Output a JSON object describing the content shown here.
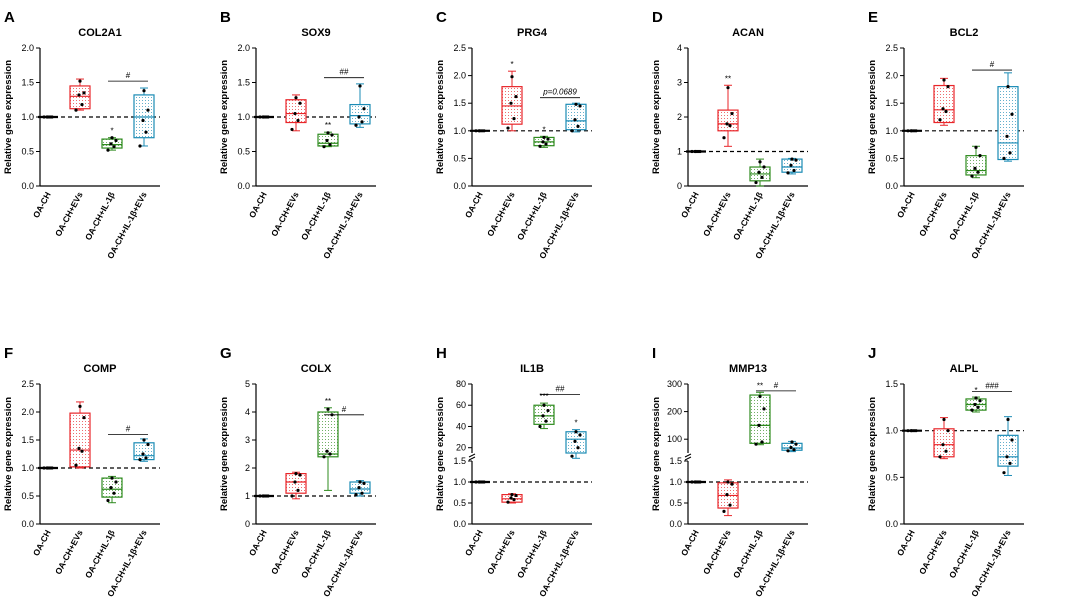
{
  "figure": {
    "categories": [
      "OA-CH",
      "OA-CH+EVs",
      "OA-CH+IL-1β",
      "OA-CH+IL-1β+EVs"
    ],
    "group_colors": [
      "#000000",
      "#e8262a",
      "#2e8b1e",
      "#1a8bb5"
    ],
    "reference_value": 1.0
  },
  "chart_data": [
    {
      "id": "A",
      "type": "box",
      "title": "COL2A1",
      "ylabel": "Relative gene expression",
      "ylim": [
        0,
        2.0
      ],
      "yticks": [
        "0.0",
        "0.5",
        "1.0",
        "1.5",
        "2.0"
      ],
      "ytick_values": [
        0,
        0.5,
        1.0,
        1.5,
        2.0
      ],
      "series": [
        {
          "name": "OA-CH",
          "min": 1.0,
          "q1": 1.0,
          "median": 1.0,
          "q3": 1.0,
          "max": 1.0,
          "points": [
            1.0,
            1.0,
            1.0,
            1.0,
            1.0
          ],
          "sig": ""
        },
        {
          "name": "OA-CH+EVs",
          "min": 1.1,
          "q1": 1.12,
          "median": 1.3,
          "q3": 1.45,
          "max": 1.55,
          "points": [
            1.1,
            1.18,
            1.32,
            1.35,
            1.52
          ],
          "sig": ""
        },
        {
          "name": "OA-CH+IL-1β",
          "min": 0.52,
          "q1": 0.55,
          "median": 0.6,
          "q3": 0.68,
          "max": 0.7,
          "points": [
            0.52,
            0.57,
            0.61,
            0.66,
            0.7
          ],
          "sig": "*"
        },
        {
          "name": "OA-CH+IL-1β+EVs",
          "min": 0.58,
          "q1": 0.7,
          "median": 1.0,
          "q3": 1.32,
          "max": 1.42,
          "points": [
            0.58,
            0.78,
            0.95,
            1.1,
            1.38
          ],
          "sig": ""
        }
      ],
      "brackets": [
        {
          "from": 2,
          "to": 3,
          "value": 1.52,
          "label": "#"
        }
      ]
    },
    {
      "id": "B",
      "type": "box",
      "title": "SOX9",
      "ylabel": "Relative gene expression",
      "ylim": [
        0,
        2.0
      ],
      "yticks": [
        "0.0",
        "0.5",
        "1.0",
        "1.5",
        "2.0"
      ],
      "ytick_values": [
        0,
        0.5,
        1.0,
        1.5,
        2.0
      ],
      "series": [
        {
          "name": "OA-CH",
          "min": 1.0,
          "q1": 1.0,
          "median": 1.0,
          "q3": 1.0,
          "max": 1.0,
          "points": [
            1.0,
            1.0,
            1.0,
            1.0,
            1.0
          ],
          "sig": ""
        },
        {
          "name": "OA-CH+EVs",
          "min": 0.8,
          "q1": 0.92,
          "median": 1.05,
          "q3": 1.25,
          "max": 1.32,
          "points": [
            0.82,
            0.95,
            1.05,
            1.2,
            1.28
          ],
          "sig": ""
        },
        {
          "name": "OA-CH+IL-1β",
          "min": 0.57,
          "q1": 0.58,
          "median": 0.62,
          "q3": 0.75,
          "max": 0.78,
          "points": [
            0.57,
            0.6,
            0.66,
            0.74,
            0.77
          ],
          "sig": "**"
        },
        {
          "name": "OA-CH+IL-1β+EVs",
          "min": 0.85,
          "q1": 0.9,
          "median": 1.02,
          "q3": 1.18,
          "max": 1.48,
          "points": [
            0.88,
            0.93,
            1.0,
            1.12,
            1.45
          ],
          "sig": ""
        }
      ],
      "brackets": [
        {
          "from": 2,
          "to": 3,
          "value": 1.57,
          "label": "##"
        }
      ]
    },
    {
      "id": "C",
      "type": "box",
      "title": "PRG4",
      "ylabel": "Relative gene expression",
      "ylim": [
        0,
        2.5
      ],
      "yticks": [
        "0.0",
        "0.5",
        "1.0",
        "1.5",
        "2.0",
        "2.5"
      ],
      "ytick_values": [
        0,
        0.5,
        1.0,
        1.5,
        2.0,
        2.5
      ],
      "series": [
        {
          "name": "OA-CH",
          "min": 1.0,
          "q1": 1.0,
          "median": 1.0,
          "q3": 1.0,
          "max": 1.0,
          "points": [
            1.0,
            1.0,
            1.0,
            1.0,
            1.0
          ],
          "sig": ""
        },
        {
          "name": "OA-CH+EVs",
          "min": 1.0,
          "q1": 1.12,
          "median": 1.45,
          "q3": 1.8,
          "max": 2.08,
          "points": [
            1.05,
            1.22,
            1.5,
            1.62,
            1.98
          ],
          "sig": "*"
        },
        {
          "name": "OA-CH+IL-1β",
          "min": 0.7,
          "q1": 0.73,
          "median": 0.8,
          "q3": 0.88,
          "max": 0.9,
          "points": [
            0.72,
            0.76,
            0.8,
            0.85,
            0.88
          ],
          "sig": "*"
        },
        {
          "name": "OA-CH+IL-1β+EVs",
          "min": 0.98,
          "q1": 1.02,
          "median": 1.18,
          "q3": 1.48,
          "max": 1.5,
          "points": [
            1.0,
            1.08,
            1.2,
            1.45,
            1.48
          ],
          "sig": ""
        }
      ],
      "brackets": [
        {
          "from": 2,
          "to": 3,
          "value": 1.6,
          "label": "p=0.0689"
        }
      ]
    },
    {
      "id": "D",
      "type": "box",
      "title": "ACAN",
      "ylabel": "Relative gene expression",
      "ylim": [
        0,
        4
      ],
      "yticks": [
        "0",
        "1",
        "2",
        "3",
        "4"
      ],
      "ytick_values": [
        0,
        1,
        2,
        3,
        4
      ],
      "series": [
        {
          "name": "OA-CH",
          "min": 1.0,
          "q1": 1.0,
          "median": 1.0,
          "q3": 1.0,
          "max": 1.0,
          "points": [
            1.0,
            1.0,
            1.0,
            1.0,
            1.0
          ],
          "sig": ""
        },
        {
          "name": "OA-CH+EVs",
          "min": 1.15,
          "q1": 1.6,
          "median": 1.8,
          "q3": 2.2,
          "max": 2.92,
          "points": [
            1.4,
            1.75,
            1.8,
            2.1,
            2.85
          ],
          "sig": "**"
        },
        {
          "name": "OA-CH+IL-1β",
          "min": 0.0,
          "q1": 0.15,
          "median": 0.35,
          "q3": 0.55,
          "max": 0.78,
          "points": [
            0.1,
            0.25,
            0.4,
            0.55,
            0.7
          ],
          "sig": ""
        },
        {
          "name": "OA-CH+IL-1β+EVs",
          "min": 0.35,
          "q1": 0.4,
          "median": 0.55,
          "q3": 0.78,
          "max": 0.8,
          "points": [
            0.38,
            0.45,
            0.6,
            0.75,
            0.78
          ],
          "sig": ""
        }
      ],
      "brackets": []
    },
    {
      "id": "E",
      "type": "box",
      "title": "BCL2",
      "ylabel": "Relative gene expression",
      "ylim": [
        0,
        2.5
      ],
      "yticks": [
        "0.0",
        "0.5",
        "1.0",
        "1.5",
        "2.0",
        "2.5"
      ],
      "ytick_values": [
        0,
        0.5,
        1.0,
        1.5,
        2.0,
        2.5
      ],
      "series": [
        {
          "name": "OA-CH",
          "min": 1.0,
          "q1": 1.0,
          "median": 1.0,
          "q3": 1.0,
          "max": 1.0,
          "points": [
            1.0,
            1.0,
            1.0,
            1.0,
            1.0
          ],
          "sig": ""
        },
        {
          "name": "OA-CH+EVs",
          "min": 1.1,
          "q1": 1.15,
          "median": 1.38,
          "q3": 1.82,
          "max": 1.95,
          "points": [
            1.2,
            1.35,
            1.4,
            1.8,
            1.92
          ],
          "sig": ""
        },
        {
          "name": "OA-CH+IL-1β",
          "min": 0.15,
          "q1": 0.2,
          "median": 0.28,
          "q3": 0.55,
          "max": 0.72,
          "points": [
            0.18,
            0.25,
            0.32,
            0.55,
            0.7
          ],
          "sig": ""
        },
        {
          "name": "OA-CH+IL-1β+EVs",
          "min": 0.45,
          "q1": 0.48,
          "median": 0.78,
          "q3": 1.8,
          "max": 2.05,
          "points": [
            0.5,
            0.6,
            0.9,
            1.3,
            1.8
          ],
          "sig": ""
        }
      ],
      "brackets": [
        {
          "from": 2,
          "to": 3,
          "value": 2.1,
          "label": "#"
        }
      ]
    },
    {
      "id": "F",
      "type": "box",
      "title": "COMP",
      "ylabel": "Relative gene expression",
      "ylim": [
        0,
        2.5
      ],
      "yticks": [
        "0.0",
        "0.5",
        "1.0",
        "1.5",
        "2.0",
        "2.5"
      ],
      "ytick_values": [
        0,
        0.5,
        1.0,
        1.5,
        2.0,
        2.5
      ],
      "series": [
        {
          "name": "OA-CH",
          "min": 1.0,
          "q1": 1.0,
          "median": 1.0,
          "q3": 1.0,
          "max": 1.0,
          "points": [
            1.0,
            1.0,
            1.0,
            1.0,
            1.0
          ],
          "sig": ""
        },
        {
          "name": "OA-CH+EVs",
          "min": 1.0,
          "q1": 1.02,
          "median": 1.32,
          "q3": 1.98,
          "max": 2.18,
          "points": [
            1.05,
            1.3,
            1.35,
            1.9,
            2.1
          ],
          "sig": ""
        },
        {
          "name": "OA-CH+IL-1β",
          "min": 0.38,
          "q1": 0.48,
          "median": 0.62,
          "q3": 0.82,
          "max": 0.85,
          "points": [
            0.42,
            0.55,
            0.65,
            0.75,
            0.82
          ],
          "sig": ""
        },
        {
          "name": "OA-CH+IL-1β+EVs",
          "min": 1.12,
          "q1": 1.15,
          "median": 1.22,
          "q3": 1.45,
          "max": 1.52,
          "points": [
            1.15,
            1.18,
            1.25,
            1.42,
            1.5
          ],
          "sig": ""
        }
      ],
      "brackets": [
        {
          "from": 2,
          "to": 3,
          "value": 1.6,
          "label": "#"
        }
      ]
    },
    {
      "id": "G",
      "type": "box",
      "title": "COLX",
      "ylabel": "Relative gene expression",
      "ylim": [
        0,
        5
      ],
      "yticks": [
        "0",
        "1",
        "2",
        "3",
        "4",
        "5"
      ],
      "ytick_values": [
        0,
        1,
        2,
        3,
        4,
        5
      ],
      "series": [
        {
          "name": "OA-CH",
          "min": 1.0,
          "q1": 1.0,
          "median": 1.0,
          "q3": 1.0,
          "max": 1.0,
          "points": [
            1.0,
            1.0,
            1.0,
            1.0,
            1.0
          ],
          "sig": ""
        },
        {
          "name": "OA-CH+EVs",
          "min": 0.9,
          "q1": 1.1,
          "median": 1.5,
          "q3": 1.8,
          "max": 1.85,
          "points": [
            1.0,
            1.2,
            1.5,
            1.75,
            1.8
          ],
          "sig": ""
        },
        {
          "name": "OA-CH+IL-1β",
          "min": 1.2,
          "q1": 2.4,
          "median": 2.5,
          "q3": 4.0,
          "max": 4.15,
          "points": [
            2.4,
            2.5,
            2.6,
            3.9,
            4.1
          ],
          "sig": "**"
        },
        {
          "name": "OA-CH+IL-1β+EVs",
          "min": 1.0,
          "q1": 1.1,
          "median": 1.25,
          "q3": 1.5,
          "max": 1.55,
          "points": [
            1.05,
            1.1,
            1.3,
            1.45,
            1.5
          ],
          "sig": ""
        }
      ],
      "brackets": [
        {
          "from": 2,
          "to": 3,
          "value": 3.9,
          "label": "#"
        }
      ]
    },
    {
      "id": "H",
      "type": "box-broken-axis",
      "title": "IL1B",
      "ylabel": "Relative gene expression",
      "ylim": [
        0,
        80
      ],
      "axis_break": [
        1.5,
        15
      ],
      "yticks": [
        "0.0",
        "0.5",
        "1.0",
        "1.5",
        "20",
        "40",
        "60",
        "80"
      ],
      "ytick_values": [
        0,
        0.5,
        1.0,
        1.5,
        20,
        40,
        60,
        80
      ],
      "series": [
        {
          "name": "OA-CH",
          "min": 1.0,
          "q1": 1.0,
          "median": 1.0,
          "q3": 1.0,
          "max": 1.0,
          "points": [
            1.0,
            1.0,
            1.0,
            1.0,
            1.0
          ],
          "sig": ""
        },
        {
          "name": "OA-CH+EVs",
          "min": 0.5,
          "q1": 0.52,
          "median": 0.6,
          "q3": 0.7,
          "max": 0.72,
          "points": [
            0.52,
            0.58,
            0.62,
            0.68,
            0.7
          ],
          "sig": ""
        },
        {
          "name": "OA-CH+IL-1β",
          "min": 38,
          "q1": 42,
          "median": 50,
          "q3": 60,
          "max": 62,
          "points": [
            40,
            45,
            50,
            55,
            60
          ],
          "sig": "***"
        },
        {
          "name": "OA-CH+IL-1β+EVs",
          "min": 10,
          "q1": 15,
          "median": 28,
          "q3": 35,
          "max": 37,
          "points": [
            12,
            20,
            26,
            32,
            35
          ],
          "sig": "*"
        }
      ],
      "brackets": [
        {
          "from": 2,
          "to": 3,
          "value": 70,
          "label": "##"
        }
      ]
    },
    {
      "id": "I",
      "type": "box-broken-axis",
      "title": "MMP13",
      "ylabel": "Relative gene expression",
      "ylim": [
        0,
        300
      ],
      "axis_break": [
        1.5,
        50
      ],
      "yticks": [
        "0.0",
        "0.5",
        "1.0",
        "1.5",
        "100",
        "200",
        "300"
      ],
      "ytick_values": [
        0,
        0.5,
        1.0,
        1.5,
        100,
        200,
        300
      ],
      "series": [
        {
          "name": "OA-CH",
          "min": 1.0,
          "q1": 1.0,
          "median": 1.0,
          "q3": 1.0,
          "max": 1.0,
          "points": [
            1.0,
            1.0,
            1.0,
            1.0,
            1.0
          ],
          "sig": ""
        },
        {
          "name": "OA-CH+EVs",
          "min": 0.2,
          "q1": 0.38,
          "median": 0.68,
          "q3": 0.98,
          "max": 1.05,
          "points": [
            0.3,
            0.45,
            0.7,
            0.95,
            1.0
          ],
          "sig": ""
        },
        {
          "name": "OA-CH+IL-1β",
          "min": 80,
          "q1": 85,
          "median": 150,
          "q3": 260,
          "max": 270,
          "points": [
            82,
            90,
            150,
            210,
            255
          ],
          "sig": "**"
        },
        {
          "name": "OA-CH+IL-1β+EVs",
          "min": 55,
          "q1": 60,
          "median": 68,
          "q3": 85,
          "max": 92,
          "points": [
            58,
            62,
            70,
            82,
            90
          ],
          "sig": ""
        }
      ],
      "brackets": [
        {
          "from": 2,
          "to": 3,
          "value": 275,
          "label": "#"
        }
      ]
    },
    {
      "id": "J",
      "type": "box",
      "title": "ALPL",
      "ylabel": "Relative gene expression",
      "ylim": [
        0,
        1.5
      ],
      "yticks": [
        "0.0",
        "0.5",
        "1.0",
        "1.5"
      ],
      "ytick_values": [
        0,
        0.5,
        1.0,
        1.5
      ],
      "series": [
        {
          "name": "OA-CH",
          "min": 1.0,
          "q1": 1.0,
          "median": 1.0,
          "q3": 1.0,
          "max": 1.0,
          "points": [
            1.0,
            1.0,
            1.0,
            1.0,
            1.0
          ],
          "sig": ""
        },
        {
          "name": "OA-CH+EVs",
          "min": 0.7,
          "q1": 0.72,
          "median": 0.85,
          "q3": 1.02,
          "max": 1.14,
          "points": [
            0.72,
            0.78,
            0.85,
            1.0,
            1.12
          ],
          "sig": ""
        },
        {
          "name": "OA-CH+IL-1β",
          "min": 1.2,
          "q1": 1.22,
          "median": 1.28,
          "q3": 1.34,
          "max": 1.36,
          "points": [
            1.22,
            1.25,
            1.28,
            1.32,
            1.35
          ],
          "sig": "*"
        },
        {
          "name": "OA-CH+IL-1β+EVs",
          "min": 0.52,
          "q1": 0.62,
          "median": 0.72,
          "q3": 0.95,
          "max": 1.15,
          "points": [
            0.55,
            0.65,
            0.72,
            0.9,
            1.12
          ],
          "sig": ""
        }
      ],
      "brackets": [
        {
          "from": 2,
          "to": 3,
          "value": 1.42,
          "label": "###"
        }
      ]
    }
  ]
}
